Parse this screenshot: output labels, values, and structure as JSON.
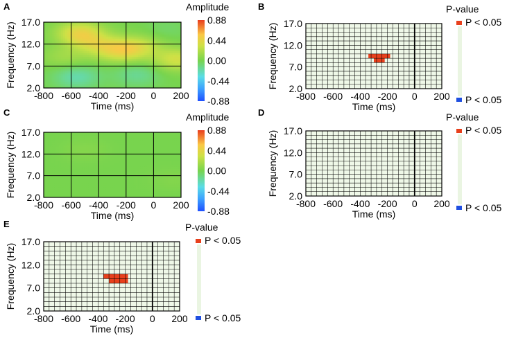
{
  "colors": {
    "sig_positive": "#e8401c",
    "sig_negative": "#1f4fe0",
    "grid_bg": "#eff8e8",
    "grid_line": "#000000"
  },
  "chart_data": [
    {
      "panel": "A",
      "type": "heatmap",
      "xlabel": "Time (ms)",
      "ylabel": "Frequency (Hz)",
      "xticks": [
        "-800",
        "-600",
        "-400",
        "-200",
        "0",
        "200"
      ],
      "yticks": [
        "17.0",
        "12.0",
        "7.0",
        "2.0"
      ],
      "xlim": [
        -800,
        200
      ],
      "ylim": [
        2,
        17
      ],
      "colorbar_title": "Amplitude",
      "colorbar_ticks": [
        "0.88",
        "0.44",
        "0.00",
        "-0.44",
        "-0.88"
      ],
      "clim": [
        -0.88,
        0.88
      ],
      "blobs": [
        {
          "t": -540,
          "f": 14.5,
          "amp": 0.42
        },
        {
          "t": -240,
          "f": 10.5,
          "amp": 0.38
        },
        {
          "t": -420,
          "f": 12.0,
          "amp": 0.26
        },
        {
          "t": -100,
          "f": 11.5,
          "amp": 0.24
        },
        {
          "t": 170,
          "f": 8.5,
          "amp": 0.34
        },
        {
          "t": -650,
          "f": 9.0,
          "amp": 0.14
        },
        {
          "t": -560,
          "f": 4.5,
          "amp": -0.22
        },
        {
          "t": -120,
          "f": 5.0,
          "amp": -0.16
        },
        {
          "t": 90,
          "f": 15.5,
          "amp": -0.06
        }
      ]
    },
    {
      "panel": "B",
      "type": "heatmap",
      "xlabel": "Time (ms)",
      "ylabel": "Frequency (Hz)",
      "xticks": [
        "-800",
        "-600",
        "-400",
        "-200",
        "0",
        "200"
      ],
      "yticks": [
        "17.0",
        "12.0",
        "7.0",
        "2.0"
      ],
      "xlim": [
        -800,
        200
      ],
      "ylim": [
        2,
        17
      ],
      "legend_title": "P-value",
      "legend_top": "P < 0.05",
      "legend_bottom": "P < 0.05",
      "significant_cells": [
        {
          "t0": -340,
          "t1": -180,
          "f0": 9.0,
          "f1": 10.0
        },
        {
          "t0": -300,
          "t1": -220,
          "f0": 8.0,
          "f1": 9.0
        }
      ]
    },
    {
      "panel": "C",
      "type": "heatmap",
      "xlabel": "Time (ms)",
      "ylabel": "Frequency (Hz)",
      "xticks": [
        "-800",
        "-600",
        "-400",
        "-200",
        "0",
        "200"
      ],
      "yticks": [
        "17.0",
        "12.0",
        "7.0",
        "2.0"
      ],
      "xlim": [
        -800,
        200
      ],
      "ylim": [
        2,
        17
      ],
      "colorbar_title": "Amplitude",
      "colorbar_ticks": [
        "0.88",
        "0.44",
        "0.00",
        "-0.44",
        "-0.88"
      ],
      "clim": [
        -0.88,
        0.88
      ],
      "blobs": [
        {
          "t": -500,
          "f": 13.0,
          "amp": 0.05
        },
        {
          "t": 150,
          "f": 6.0,
          "amp": 0.04
        }
      ]
    },
    {
      "panel": "D",
      "type": "heatmap",
      "xlabel": "Time (ms)",
      "ylabel": "Frequency (Hz)",
      "xticks": [
        "-800",
        "-600",
        "-400",
        "-200",
        "0",
        "200"
      ],
      "yticks": [
        "17.0",
        "12.0",
        "7.0",
        "2.0"
      ],
      "xlim": [
        -800,
        200
      ],
      "ylim": [
        2,
        17
      ],
      "legend_title": "P-value",
      "legend_top": "P < 0.05",
      "legend_bottom": "P < 0.05",
      "significant_cells": []
    },
    {
      "panel": "E",
      "type": "heatmap",
      "xlabel": "Time (ms)",
      "ylabel": "Frequency (Hz)",
      "xticks": [
        "-800",
        "-600",
        "-400",
        "-200",
        "0",
        "200"
      ],
      "yticks": [
        "17.0",
        "12.0",
        "7.0",
        "2.0"
      ],
      "xlim": [
        -800,
        200
      ],
      "ylim": [
        2,
        17
      ],
      "legend_title": "P-value",
      "legend_top": "P < 0.05",
      "legend_bottom": "P < 0.05",
      "significant_cells": [
        {
          "t0": -360,
          "t1": -180,
          "f0": 9.0,
          "f1": 10.0
        },
        {
          "t0": -320,
          "t1": -180,
          "f0": 8.0,
          "f1": 9.0
        }
      ]
    }
  ]
}
